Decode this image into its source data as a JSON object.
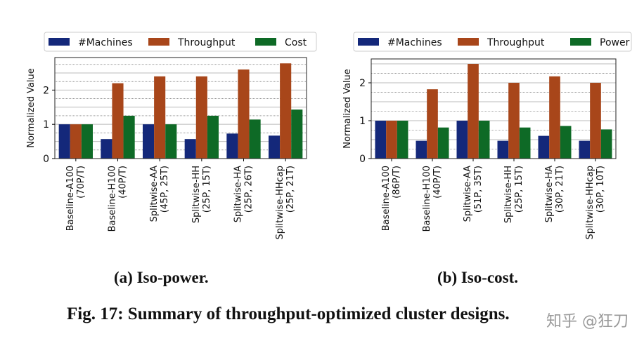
{
  "chart_data": [
    {
      "type": "bar",
      "title": "",
      "xlabel": "",
      "ylabel": "Normalized Value",
      "ylim": [
        0,
        2.95
      ],
      "yticks": [
        0,
        1,
        2
      ],
      "categories": [
        [
          "Baseline-A100",
          "(70P/T)"
        ],
        [
          "Baseline-H100",
          "(40P/T)"
        ],
        [
          "Splitwise-AA",
          "(45P, 25T)"
        ],
        [
          "Splitwise-HH",
          "(25P, 15T)"
        ],
        [
          "Splitwise-HA",
          "(25P, 26T)"
        ],
        [
          "Splitwise-HHcap",
          "(25P, 21T)"
        ]
      ],
      "series": [
        {
          "name": "#Machines",
          "color": "#14287a",
          "values": [
            1,
            0.57,
            1,
            0.57,
            0.73,
            0.67
          ]
        },
        {
          "name": "Throughput",
          "color": "#a8461a",
          "values": [
            1,
            2.2,
            2.4,
            2.4,
            2.6,
            2.78
          ]
        },
        {
          "name": "Cost",
          "color": "#0e6a26",
          "values": [
            1,
            1.25,
            1,
            1.25,
            1.14,
            1.43
          ]
        }
      ],
      "legend": "top",
      "grid": true,
      "caption": "(a) Iso-power."
    },
    {
      "type": "bar",
      "title": "",
      "xlabel": "",
      "ylabel": "Normalized Value",
      "ylim": [
        0,
        2.63
      ],
      "yticks": [
        0,
        1,
        2
      ],
      "categories": [
        [
          "Baseline-A100",
          "(86P/T)"
        ],
        [
          "Baseline-H100",
          "(40P/T)"
        ],
        [
          "Splitwise-AA",
          "(51P, 35T)"
        ],
        [
          "Splitwise-HH",
          "(25P, 15T)"
        ],
        [
          "Splitwise-HA",
          "(30P, 21T)"
        ],
        [
          "Splitwise-HHcap",
          "(30P, 10T)"
        ]
      ],
      "series": [
        {
          "name": "#Machines",
          "color": "#14287a",
          "values": [
            1,
            0.47,
            1,
            0.47,
            0.6,
            0.47
          ]
        },
        {
          "name": "Throughput",
          "color": "#a8461a",
          "values": [
            1,
            1.83,
            2.5,
            2,
            2.17,
            2
          ]
        },
        {
          "name": "Power",
          "color": "#0e6a26",
          "values": [
            1,
            0.82,
            1,
            0.82,
            0.86,
            0.77
          ]
        }
      ],
      "legend": "top",
      "grid": true,
      "caption": "(b) Iso-cost."
    }
  ],
  "figure_caption": "Fig. 17: Summary of throughput-optimized cluster designs.",
  "watermark": "知乎 @狂刀"
}
